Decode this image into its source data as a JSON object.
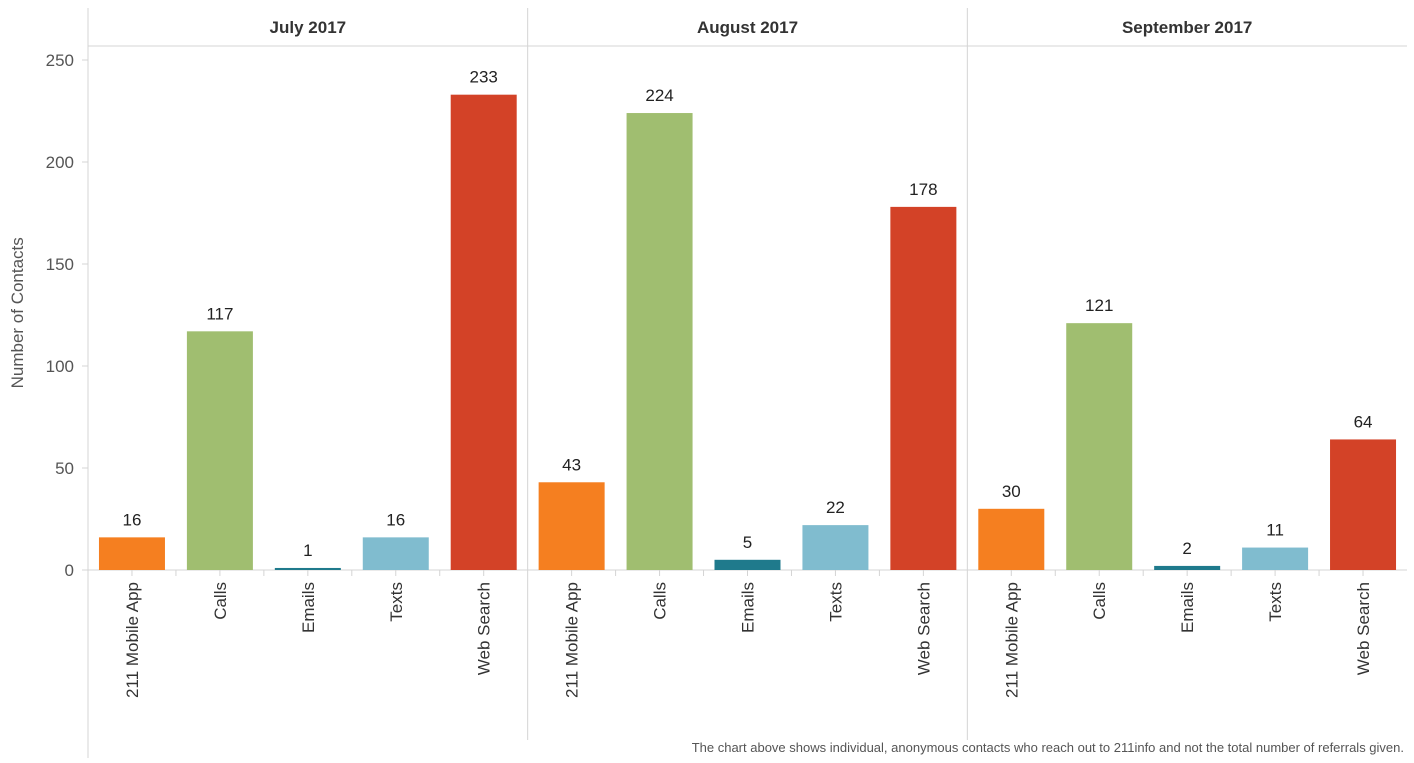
{
  "chart_data": {
    "type": "bar",
    "ylabel": "Number of Contacts",
    "ylim": [
      0,
      260
    ],
    "yticks": [
      0,
      50,
      100,
      150,
      200,
      250
    ],
    "grid": false,
    "categories": [
      "211 Mobile App",
      "Calls",
      "Emails",
      "Texts",
      "Web Search"
    ],
    "colors": {
      "211 Mobile App": "#f57f20",
      "Calls": "#a0be70",
      "Emails": "#1f7a8c",
      "Texts": "#80bccf",
      "Web Search": "#d34227"
    },
    "panels": [
      {
        "title": "July 2017",
        "values": [
          16,
          117,
          1,
          16,
          233
        ]
      },
      {
        "title": "August 2017",
        "values": [
          43,
          224,
          5,
          22,
          178
        ]
      },
      {
        "title": "September 2017",
        "values": [
          30,
          121,
          2,
          11,
          64
        ]
      }
    ],
    "footnote": "The chart above shows individual, anonymous contacts who reach out to 211info and not the total number of referrals given."
  }
}
